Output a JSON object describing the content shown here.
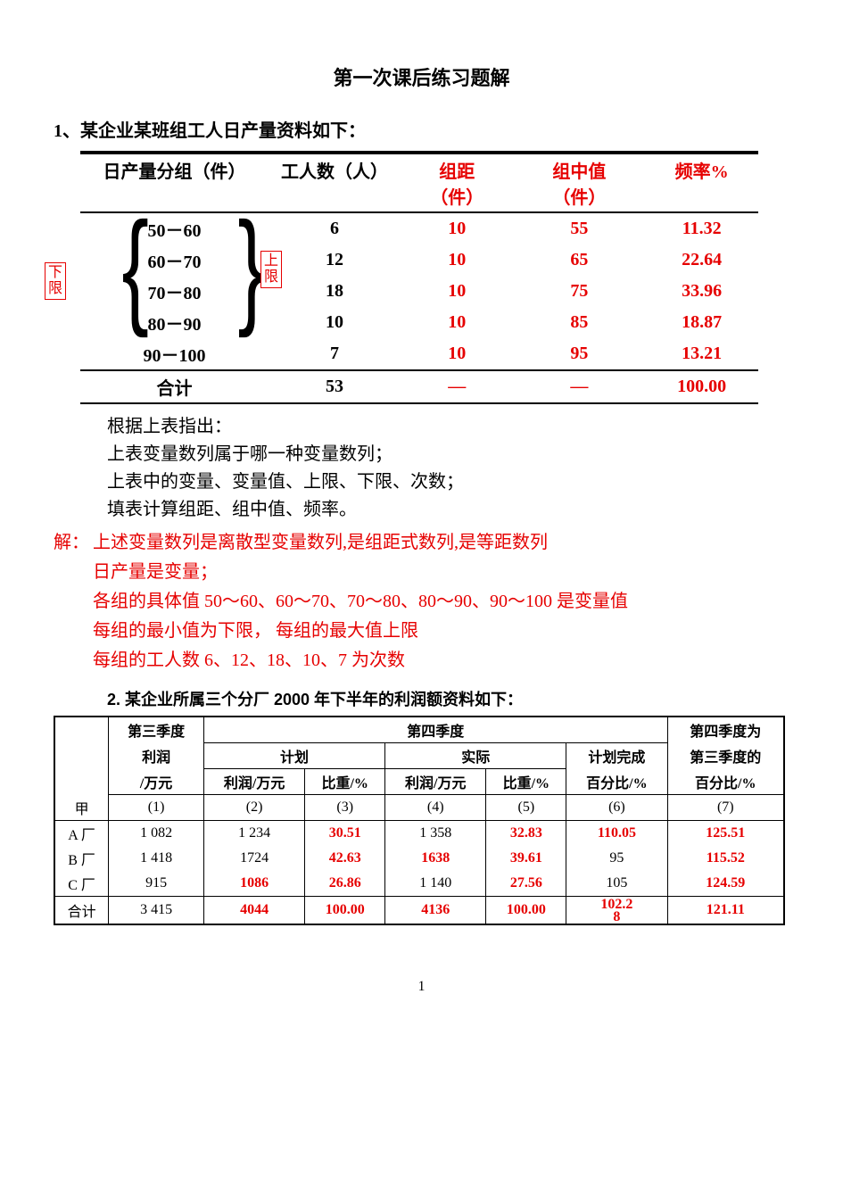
{
  "title": "第一次课后练习题解",
  "q1": {
    "heading": "1、某企业某班组工人日产量资料如下：",
    "columns": {
      "c1": "日产量分组（件）",
      "c2": "工人数（人）",
      "c3a": "组距",
      "c3b": "（件）",
      "c4a": "组中值",
      "c4b": "（件）",
      "c5": "频率%"
    },
    "rows": [
      {
        "range": "50－60",
        "n": "6",
        "w": "10",
        "mid": "55",
        "freq": "11.32"
      },
      {
        "range": "60－70",
        "n": "12",
        "w": "10",
        "mid": "65",
        "freq": "22.64"
      },
      {
        "range": "70－80",
        "n": "18",
        "w": "10",
        "mid": "75",
        "freq": "33.96"
      },
      {
        "range": "80－90",
        "n": "10",
        "w": "10",
        "mid": "85",
        "freq": "18.87"
      },
      {
        "range": "90－100",
        "n": "7",
        "w": "10",
        "mid": "95",
        "freq": "13.21"
      }
    ],
    "total": {
      "label": "合计",
      "n": "53",
      "w": "—",
      "mid": "—",
      "freq": "100.00"
    },
    "left_box": "下限",
    "right_box": "上限",
    "notes": [
      "根据上表指出：",
      "上表变量数列属于哪一种变量数列；",
      "上表中的变量、变量值、上限、下限、次数；",
      "填表计算组距、组中值、频率。"
    ],
    "answers_prefix": "解：",
    "answers": [
      "上述变量数列是离散型变量数列,是组距式数列,是等距数列",
      "日产量是变量；",
      "各组的具体值 50～60、60～70、70～80、80～90、90～100 是变量值",
      "每组的最小值为下限，  每组的最大值上限",
      "每组的工人数 6、12、18、10、7 为次数"
    ]
  },
  "q2": {
    "heading": "2. 某企业所属三个分厂 2000 年下半年的利润额资料如下：",
    "head": {
      "blank": "",
      "h3a": "第三季度",
      "h3b": "利润",
      "h3c": "/万元",
      "h4": "第四季度",
      "plan": "计划",
      "actual": "实际",
      "plan_pct_a": "计划完成",
      "plan_pct_b": "百分比/%",
      "ratio_a": "第四季度为",
      "ratio_b": "第三季度的",
      "ratio_c": "百分比/%",
      "profit": "利润/万元",
      "share": "比重/%",
      "rlabel": "甲",
      "rnums": [
        "(1)",
        "(2)",
        "(3)",
        "(4)",
        "(5)",
        "(6)",
        "(7)"
      ]
    },
    "rows": [
      {
        "name": "A 厂",
        "c1": "1 082",
        "c2": "1 234",
        "c3": "30.51",
        "c4": "1 358",
        "c5": "32.83",
        "c6": "110.05",
        "c7": "125.51",
        "c2_red": false,
        "c4_red": false,
        "c6_red": true
      },
      {
        "name": "B 厂",
        "c1": "1 418",
        "c2": "1724",
        "c3": "42.63",
        "c4": "1638",
        "c5": "39.61",
        "c6": "95",
        "c7": "115.52",
        "c2_red": false,
        "c4_red": true,
        "c6_red": false
      },
      {
        "name": "C 厂",
        "c1": "915",
        "c2": "1086",
        "c3": "26.86",
        "c4": "1 140",
        "c5": "27.56",
        "c6": "105",
        "c7": "124.59",
        "c2_red": true,
        "c4_red": false,
        "c6_red": false
      }
    ],
    "total": {
      "name": "合计",
      "c1": "3 415",
      "c2": "4044",
      "c3": "100.00",
      "c4": "4136",
      "c5": "100.00",
      "c6": "102.2",
      "c6b": "8",
      "c7": "121.11"
    }
  },
  "pagenum": "1"
}
